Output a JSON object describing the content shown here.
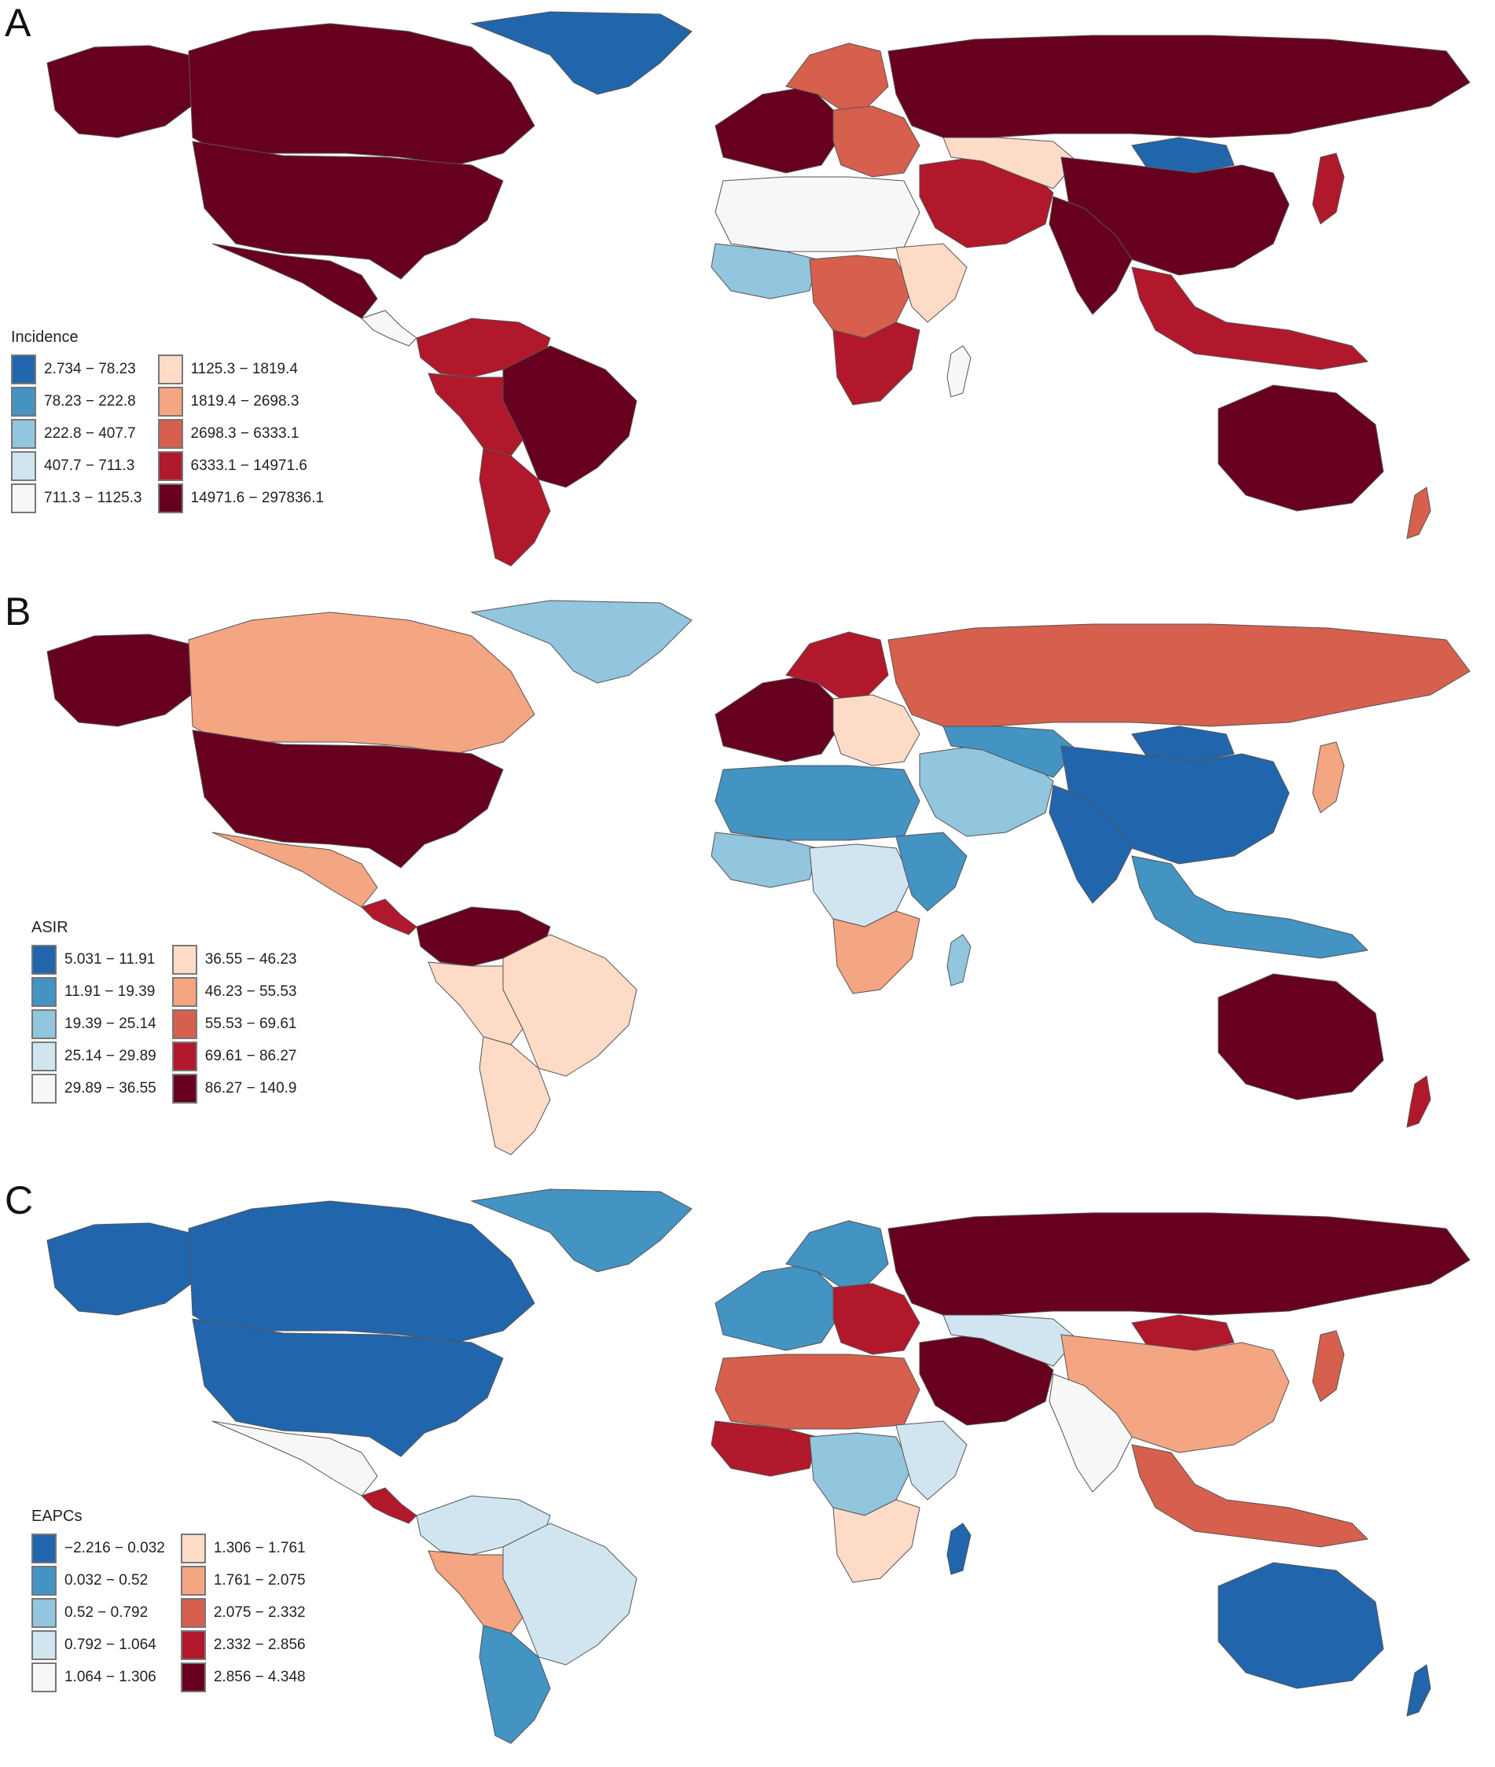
{
  "panels": [
    {
      "letter": "A",
      "legend_title": "Incidence",
      "classes": [
        {
          "range": "2.734 − 78.23",
          "color": "#2166ac"
        },
        {
          "range": "78.23 − 222.8",
          "color": "#4393c3"
        },
        {
          "range": "222.8 − 407.7",
          "color": "#92c5de"
        },
        {
          "range": "407.7 − 711.3",
          "color": "#d1e5f0"
        },
        {
          "range": "711.3 − 1125.3",
          "color": "#f7f7f7"
        },
        {
          "range": "1125.3 − 1819.4",
          "color": "#fddbc7"
        },
        {
          "range": "1819.4 − 2698.3",
          "color": "#f4a582"
        },
        {
          "range": "2698.3 − 6333.1",
          "color": "#d6604d"
        },
        {
          "range": "6333.1 − 14971.6",
          "color": "#b2182b"
        },
        {
          "range": "14971.6 − 297836.1",
          "color": "#67001f"
        }
      ],
      "regions": {
        "alaska": 9,
        "canada": 9,
        "usa": 9,
        "mexico": 9,
        "central_america": 4,
        "greenland": 0,
        "brazil": 9,
        "south_america_north": 8,
        "argentina": 8,
        "south_america_west": 8,
        "western_europe": 9,
        "eastern_europe": 7,
        "scandinavia": 7,
        "russia": 9,
        "north_africa": 4,
        "west_africa": 2,
        "central_africa": 7,
        "east_africa": 5,
        "southern_africa": 8,
        "madagascar": 4,
        "middle_east": 8,
        "central_asia": 5,
        "mongolia": 0,
        "china": 9,
        "india": 9,
        "southeast_asia": 8,
        "japan": 8,
        "australia": 9,
        "new_zealand": 7
      }
    },
    {
      "letter": "B",
      "legend_title": "ASIR",
      "classes": [
        {
          "range": "5.031 − 11.91",
          "color": "#2166ac"
        },
        {
          "range": "11.91 − 19.39",
          "color": "#4393c3"
        },
        {
          "range": "19.39 − 25.14",
          "color": "#92c5de"
        },
        {
          "range": "25.14 − 29.89",
          "color": "#d1e5f0"
        },
        {
          "range": "29.89 − 36.55",
          "color": "#f7f7f7"
        },
        {
          "range": "36.55 − 46.23",
          "color": "#fddbc7"
        },
        {
          "range": "46.23 − 55.53",
          "color": "#f4a582"
        },
        {
          "range": "55.53 − 69.61",
          "color": "#d6604d"
        },
        {
          "range": "69.61 − 86.27",
          "color": "#b2182b"
        },
        {
          "range": "86.27 − 140.9",
          "color": "#67001f"
        }
      ],
      "regions": {
        "alaska": 9,
        "canada": 6,
        "usa": 9,
        "mexico": 6,
        "central_america": 8,
        "greenland": 2,
        "brazil": 5,
        "south_america_north": 9,
        "argentina": 5,
        "south_america_west": 5,
        "western_europe": 9,
        "eastern_europe": 5,
        "scandinavia": 8,
        "russia": 7,
        "north_africa": 1,
        "west_africa": 2,
        "central_africa": 3,
        "east_africa": 1,
        "southern_africa": 6,
        "madagascar": 2,
        "middle_east": 2,
        "central_asia": 1,
        "mongolia": 0,
        "china": 0,
        "india": 0,
        "southeast_asia": 1,
        "japan": 6,
        "australia": 9,
        "new_zealand": 8
      }
    },
    {
      "letter": "C",
      "legend_title": "EAPCs",
      "classes": [
        {
          "range": "−2.216 − 0.032",
          "color": "#2166ac"
        },
        {
          "range": "0.032 − 0.52",
          "color": "#4393c3"
        },
        {
          "range": "0.52 − 0.792",
          "color": "#92c5de"
        },
        {
          "range": "0.792 − 1.064",
          "color": "#d1e5f0"
        },
        {
          "range": "1.064 − 1.306",
          "color": "#f7f7f7"
        },
        {
          "range": "1.306 − 1.761",
          "color": "#fddbc7"
        },
        {
          "range": "1.761 − 2.075",
          "color": "#f4a582"
        },
        {
          "range": "2.075 − 2.332",
          "color": "#d6604d"
        },
        {
          "range": "2.332 − 2.856",
          "color": "#b2182b"
        },
        {
          "range": "2.856 − 4.348",
          "color": "#67001f"
        }
      ],
      "regions": {
        "alaska": 0,
        "canada": 0,
        "usa": 0,
        "mexico": 4,
        "central_america": 8,
        "greenland": 1,
        "brazil": 3,
        "south_america_north": 3,
        "argentina": 1,
        "south_america_west": 6,
        "western_europe": 1,
        "eastern_europe": 8,
        "scandinavia": 1,
        "russia": 9,
        "north_africa": 7,
        "west_africa": 8,
        "central_africa": 2,
        "east_africa": 3,
        "southern_africa": 5,
        "madagascar": 0,
        "middle_east": 9,
        "central_asia": 3,
        "mongolia": 8,
        "china": 6,
        "india": 4,
        "southeast_asia": 7,
        "japan": 7,
        "australia": 0,
        "new_zealand": 0
      }
    }
  ]
}
